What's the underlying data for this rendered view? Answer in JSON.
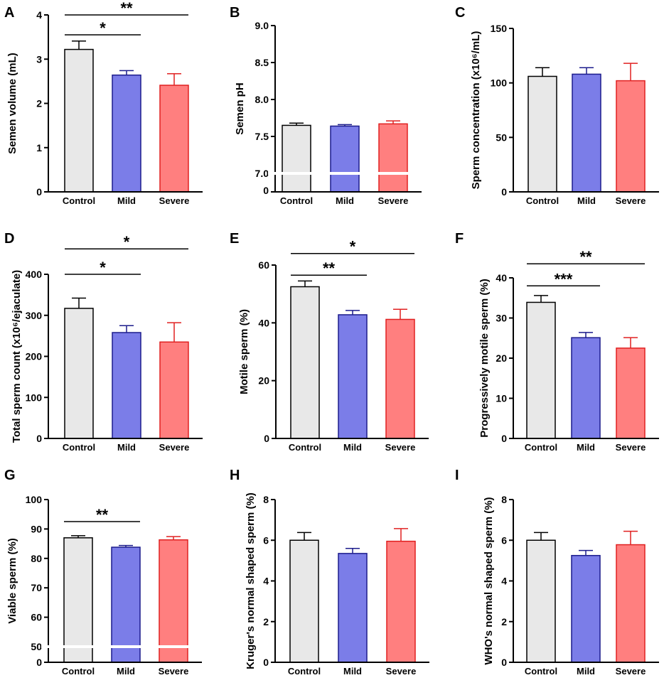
{
  "chart_data": [
    {
      "panel": "A",
      "type": "bar",
      "ylabel": "Semen volume (mL)",
      "categories": [
        "Control",
        "Mild",
        "Severe"
      ],
      "values": [
        3.22,
        2.64,
        2.41
      ],
      "errors": [
        0.19,
        0.1,
        0.26
      ],
      "colors": [
        "#e8e8e8",
        "#7b7de8",
        "#ff7f7f"
      ],
      "edge_colors": [
        "#000000",
        "#1c1c8c",
        "#e02020"
      ],
      "ylim": [
        0,
        4
      ],
      "yticks": [
        0,
        1,
        2,
        3,
        4
      ],
      "significance": [
        {
          "from": 0,
          "to": 1,
          "label": "*",
          "y": 3.55
        },
        {
          "from": 0,
          "to": 2,
          "label": "**",
          "y": 4.0
        }
      ]
    },
    {
      "panel": "B",
      "type": "bar",
      "ylabel": "Semen pH",
      "categories": [
        "Control",
        "Mild",
        "Severe"
      ],
      "values": [
        7.65,
        7.64,
        7.67
      ],
      "errors": [
        0.03,
        0.02,
        0.04
      ],
      "colors": [
        "#e8e8e8",
        "#7b7de8",
        "#ff7f7f"
      ],
      "edge_colors": [
        "#000000",
        "#1c1c8c",
        "#e02020"
      ],
      "ylim": [
        7.0,
        9.0
      ],
      "yticks": [
        7.0,
        7.5,
        8.0,
        8.5,
        9.0
      ],
      "axis_break": true,
      "break_zero_label": "0",
      "significance": []
    },
    {
      "panel": "C",
      "type": "bar",
      "ylabel": "Sperm concentration (x10⁶/mL)",
      "categories": [
        "Control",
        "Mild",
        "Severe"
      ],
      "values": [
        106,
        108,
        102
      ],
      "errors": [
        8,
        6,
        16
      ],
      "colors": [
        "#e8e8e8",
        "#7b7de8",
        "#ff7f7f"
      ],
      "edge_colors": [
        "#000000",
        "#1c1c8c",
        "#e02020"
      ],
      "ylim": [
        0,
        150
      ],
      "yticks": [
        0,
        50,
        100,
        150
      ],
      "significance": []
    },
    {
      "panel": "D",
      "type": "bar",
      "ylabel": "Total sperm count (x10⁶/ejaculate)",
      "categories": [
        "Control",
        "Mild",
        "Severe"
      ],
      "values": [
        317,
        258,
        235
      ],
      "errors": [
        25,
        17,
        47
      ],
      "colors": [
        "#e8e8e8",
        "#7b7de8",
        "#ff7f7f"
      ],
      "edge_colors": [
        "#000000",
        "#1c1c8c",
        "#e02020"
      ],
      "ylim": [
        0,
        400
      ],
      "yticks": [
        0,
        100,
        200,
        300,
        400
      ],
      "significance": [
        {
          "from": 0,
          "to": 1,
          "label": "*",
          "y": 400
        },
        {
          "from": 0,
          "to": 2,
          "label": "*",
          "y": 462
        }
      ]
    },
    {
      "panel": "E",
      "type": "bar",
      "ylabel": "Motile sperm (%)",
      "categories": [
        "Control",
        "Mild",
        "Severe"
      ],
      "values": [
        52.5,
        42.8,
        41.2
      ],
      "errors": [
        2.0,
        1.5,
        3.5
      ],
      "colors": [
        "#e8e8e8",
        "#7b7de8",
        "#ff7f7f"
      ],
      "edge_colors": [
        "#000000",
        "#1c1c8c",
        "#e02020"
      ],
      "ylim": [
        0,
        60
      ],
      "yticks": [
        0,
        20,
        40,
        60
      ],
      "significance": [
        {
          "from": 0,
          "to": 1,
          "label": "**",
          "y": 56.5
        },
        {
          "from": 0,
          "to": 2,
          "label": "*",
          "y": 64
        }
      ]
    },
    {
      "panel": "F",
      "type": "bar",
      "ylabel": "Progressively motile sperm (%)",
      "categories": [
        "Control",
        "Mild",
        "Severe"
      ],
      "values": [
        33.9,
        25.1,
        22.5
      ],
      "errors": [
        1.7,
        1.3,
        2.6
      ],
      "colors": [
        "#e8e8e8",
        "#7b7de8",
        "#ff7f7f"
      ],
      "edge_colors": [
        "#000000",
        "#1c1c8c",
        "#e02020"
      ],
      "ylim": [
        0,
        40
      ],
      "yticks": [
        0,
        10,
        20,
        30,
        40
      ],
      "significance": [
        {
          "from": 0,
          "to": 1,
          "label": "***",
          "y": 38.0
        },
        {
          "from": 0,
          "to": 2,
          "label": "**",
          "y": 43.5
        }
      ]
    },
    {
      "panel": "G",
      "type": "bar",
      "ylabel": "Viable sperm (%)",
      "categories": [
        "Control",
        "Mild",
        "Severe"
      ],
      "values": [
        87.0,
        83.8,
        86.3
      ],
      "errors": [
        0.7,
        0.6,
        1.1
      ],
      "colors": [
        "#e8e8e8",
        "#7b7de8",
        "#ff7f7f"
      ],
      "edge_colors": [
        "#000000",
        "#1c1c8c",
        "#e02020"
      ],
      "ylim": [
        50,
        100
      ],
      "yticks": [
        50,
        60,
        70,
        80,
        90,
        100
      ],
      "axis_break": true,
      "break_zero_label": "0",
      "significance": [
        {
          "from": 0,
          "to": 1,
          "label": "**",
          "y": 92.5
        }
      ]
    },
    {
      "panel": "H",
      "type": "bar",
      "ylabel": "Kruger's normal shaped sperm (%)",
      "categories": [
        "Control",
        "Mild",
        "Severe"
      ],
      "values": [
        6.0,
        5.35,
        5.95
      ],
      "errors": [
        0.38,
        0.25,
        0.62
      ],
      "colors": [
        "#e8e8e8",
        "#7b7de8",
        "#ff7f7f"
      ],
      "edge_colors": [
        "#000000",
        "#1c1c8c",
        "#e02020"
      ],
      "ylim": [
        0,
        8
      ],
      "yticks": [
        0,
        2,
        4,
        6,
        8
      ],
      "significance": []
    },
    {
      "panel": "I",
      "type": "bar",
      "ylabel": "WHO's normal shaped sperm (%)",
      "categories": [
        "Control",
        "Mild",
        "Severe"
      ],
      "values": [
        6.0,
        5.25,
        5.78
      ],
      "errors": [
        0.38,
        0.25,
        0.66
      ],
      "colors": [
        "#e8e8e8",
        "#7b7de8",
        "#ff7f7f"
      ],
      "edge_colors": [
        "#000000",
        "#1c1c8c",
        "#e02020"
      ],
      "ylim": [
        0,
        8
      ],
      "yticks": [
        0,
        2,
        4,
        6,
        8
      ],
      "significance": []
    }
  ]
}
